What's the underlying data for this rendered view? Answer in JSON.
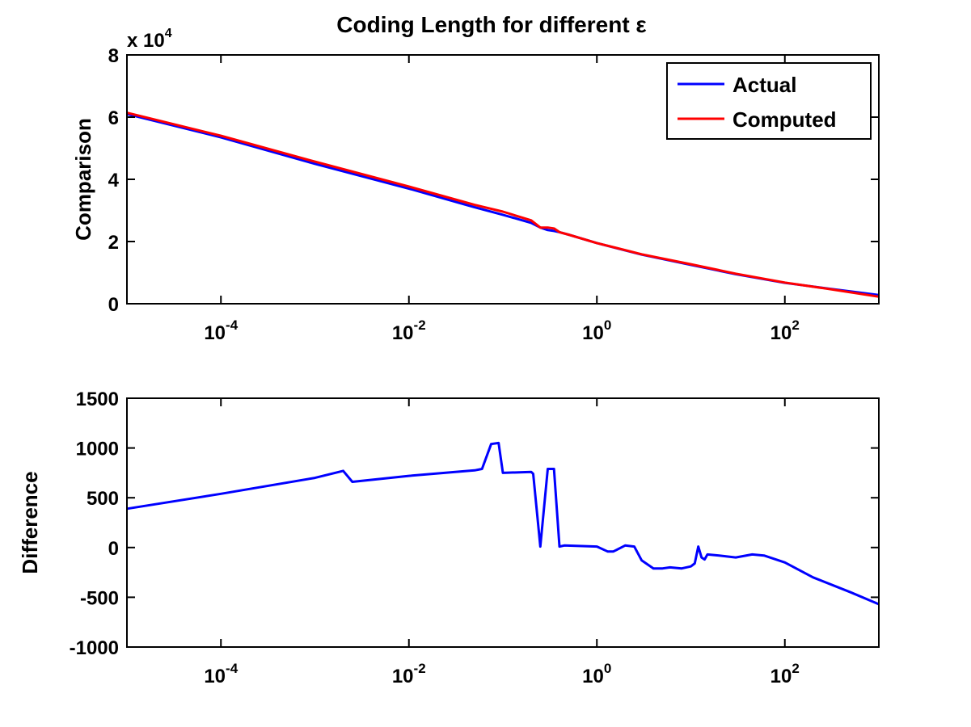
{
  "chart_data": [
    {
      "type": "line",
      "title": "Coding Length for different ε",
      "xlabel": "",
      "ylabel": "Comparison",
      "xscale": "log",
      "xlim": [
        1e-05,
        1000
      ],
      "ylim": [
        0,
        80000
      ],
      "y_exponent_label": "x 10",
      "y_exponent_power": "4",
      "yticks": [
        0,
        2,
        4,
        6,
        8
      ],
      "ytick_scale": 10000,
      "xticks": [
        0.0001,
        0.01,
        1,
        100
      ],
      "xtick_base": "10",
      "xtick_powers": [
        "-4",
        "-2",
        "0",
        "2"
      ],
      "grid": false,
      "legend": "top-right",
      "series": [
        {
          "name": "Actual",
          "color": "#0000ff",
          "x": [
            1e-05,
            0.0001,
            0.001,
            0.01,
            0.05,
            0.1,
            0.2,
            0.25,
            0.3,
            0.35,
            0.4,
            0.5,
            1,
            3,
            10,
            30,
            100,
            300,
            1000
          ],
          "y": [
            61000,
            53500,
            45000,
            37000,
            31000,
            28600,
            26000,
            24500,
            23700,
            23400,
            23000,
            22200,
            19500,
            15800,
            12500,
            9500,
            6700,
            4800,
            2800
          ]
        },
        {
          "name": "Computed",
          "color": "#ff0000",
          "x": [
            1e-05,
            0.0001,
            0.001,
            0.01,
            0.05,
            0.1,
            0.2,
            0.25,
            0.3,
            0.35,
            0.4,
            0.5,
            1,
            3,
            10,
            30,
            100,
            300,
            1000
          ],
          "y": [
            61400,
            54000,
            45700,
            37700,
            31800,
            29600,
            26800,
            24500,
            24500,
            24200,
            23000,
            22200,
            19500,
            15900,
            12700,
            9650,
            6800,
            4700,
            2250
          ]
        }
      ]
    },
    {
      "type": "line",
      "title": "",
      "xlabel": "",
      "ylabel": "Difference",
      "xscale": "log",
      "xlim": [
        1e-05,
        1000
      ],
      "ylim": [
        -1000,
        1500
      ],
      "yticks": [
        -1000,
        -500,
        0,
        500,
        1000,
        1500
      ],
      "xticks": [
        0.0001,
        0.01,
        1,
        100
      ],
      "xtick_base": "10",
      "xtick_powers": [
        "-4",
        "-2",
        "0",
        "2"
      ],
      "grid": false,
      "series": [
        {
          "name": "",
          "color": "#0000ff",
          "x": [
            1e-05,
            0.0001,
            0.001,
            0.002,
            0.0025,
            0.01,
            0.05,
            0.06,
            0.075,
            0.09,
            0.1,
            0.2,
            0.21,
            0.25,
            0.3,
            0.35,
            0.4,
            0.45,
            1,
            1.3,
            1.5,
            2,
            2.5,
            3,
            4,
            5,
            6,
            8,
            10,
            11,
            12,
            13,
            14,
            15,
            20,
            30,
            45,
            60,
            100,
            200,
            500,
            1000
          ],
          "y": [
            390,
            540,
            700,
            770,
            660,
            720,
            775,
            790,
            1040,
            1050,
            750,
            760,
            740,
            10,
            790,
            790,
            10,
            20,
            10,
            -40,
            -40,
            20,
            10,
            -130,
            -210,
            -210,
            -200,
            -210,
            -190,
            -160,
            10,
            -100,
            -120,
            -70,
            -80,
            -100,
            -70,
            -80,
            -150,
            -300,
            -450,
            -570
          ]
        }
      ]
    }
  ]
}
